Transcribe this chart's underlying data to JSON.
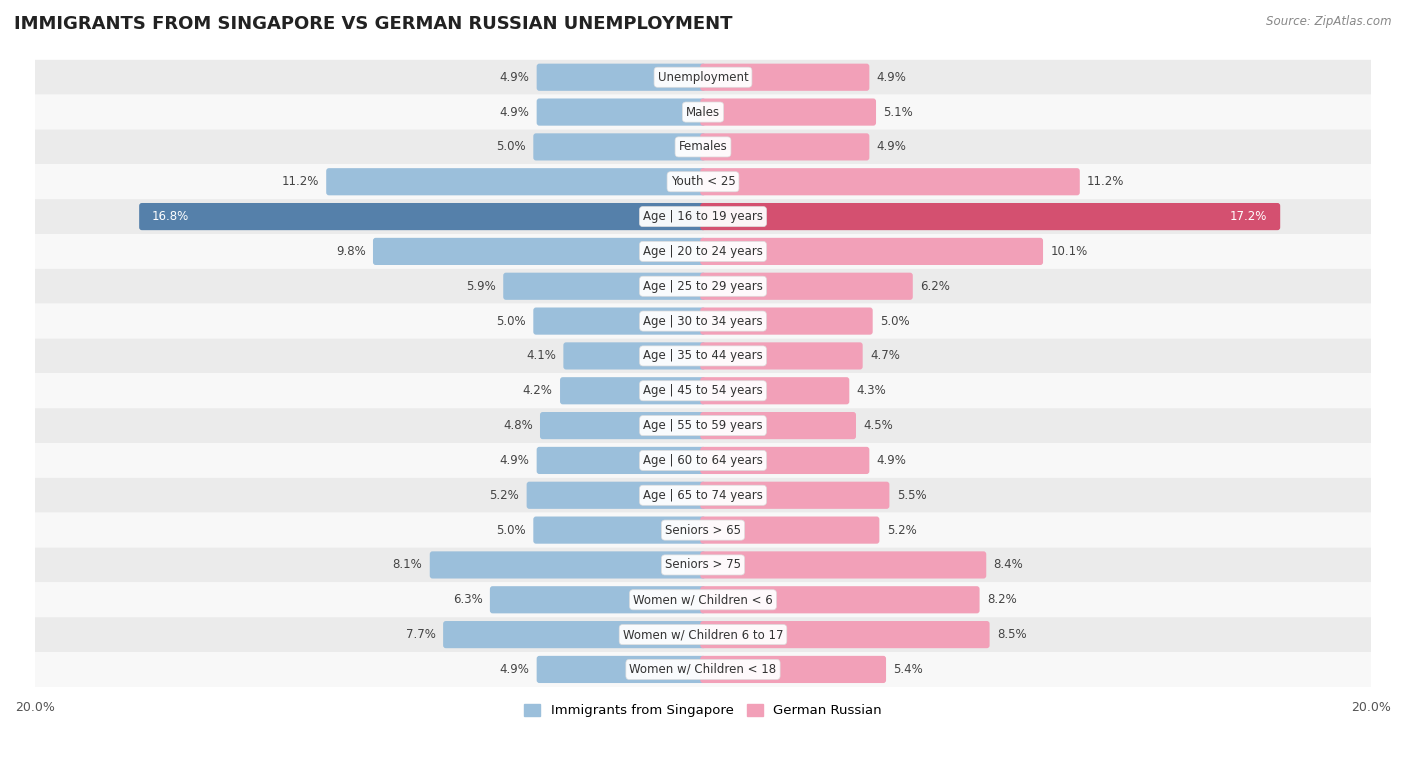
{
  "title": "IMMIGRANTS FROM SINGAPORE VS GERMAN RUSSIAN UNEMPLOYMENT",
  "source": "Source: ZipAtlas.com",
  "categories": [
    "Unemployment",
    "Males",
    "Females",
    "Youth < 25",
    "Age | 16 to 19 years",
    "Age | 20 to 24 years",
    "Age | 25 to 29 years",
    "Age | 30 to 34 years",
    "Age | 35 to 44 years",
    "Age | 45 to 54 years",
    "Age | 55 to 59 years",
    "Age | 60 to 64 years",
    "Age | 65 to 74 years",
    "Seniors > 65",
    "Seniors > 75",
    "Women w/ Children < 6",
    "Women w/ Children 6 to 17",
    "Women w/ Children < 18"
  ],
  "singapore_values": [
    4.9,
    4.9,
    5.0,
    11.2,
    16.8,
    9.8,
    5.9,
    5.0,
    4.1,
    4.2,
    4.8,
    4.9,
    5.2,
    5.0,
    8.1,
    6.3,
    7.7,
    4.9
  ],
  "german_russian_values": [
    4.9,
    5.1,
    4.9,
    11.2,
    17.2,
    10.1,
    6.2,
    5.0,
    4.7,
    4.3,
    4.5,
    4.9,
    5.5,
    5.2,
    8.4,
    8.2,
    8.5,
    5.4
  ],
  "singapore_color": "#9bbfdb",
  "german_russian_color": "#f2a0b8",
  "row_highlight_index": 4,
  "highlight_sg_color": "#5580aa",
  "highlight_gr_color": "#d45070",
  "xlim": 20.0,
  "bg_color_odd": "#ebebeb",
  "bg_color_even": "#f8f8f8",
  "label_fontsize": 8.5,
  "title_fontsize": 13,
  "value_fontsize": 8.5,
  "legend_label_sg": "Immigrants from Singapore",
  "legend_label_gr": "German Russian"
}
